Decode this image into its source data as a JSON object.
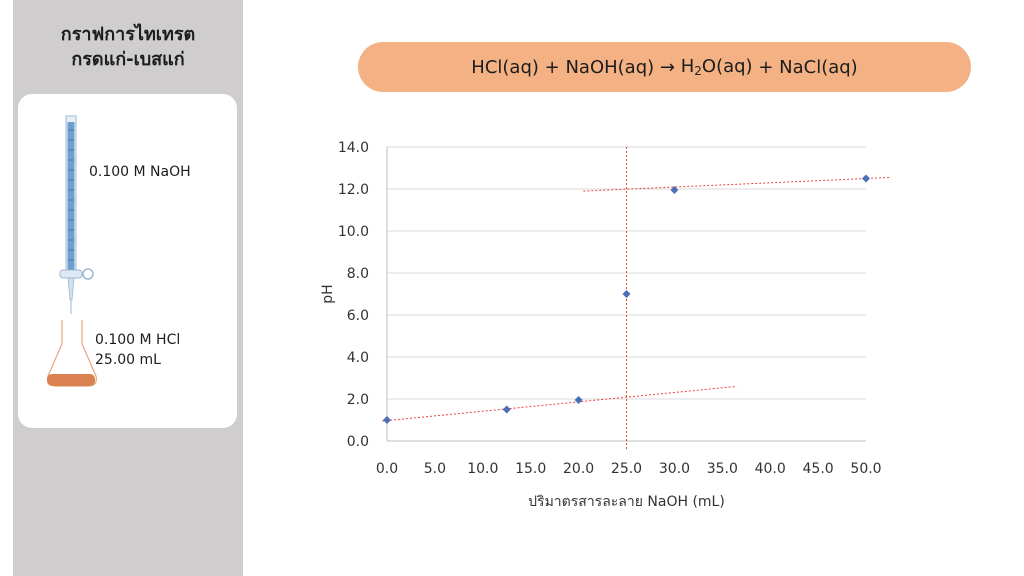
{
  "sidebar": {
    "title_line1": "กราฟการไทเทรต",
    "title_line2": "กรดแก่-เบสแก่",
    "burette_label": "0.100 M NaOH",
    "flask_label_line1": "0.100 M HCl",
    "flask_label_line2": "25.00 mL"
  },
  "equation": {
    "reactant1": "HCl(aq)",
    "plus1": "+",
    "reactant2": "NaOH(aq)",
    "arrow": "→",
    "product1_pre": "H",
    "product1_sub": "2",
    "product1_post": "O(aq)",
    "plus2": "+",
    "product2": "NaCl(aq)"
  },
  "colors": {
    "banner": "#f4b183",
    "points": "#4a6fb5",
    "trendline": "#e8413a",
    "solution": "#d9814f"
  },
  "chart_data": {
    "type": "scatter",
    "title": "",
    "xlabel": "ปริมาตรสารละลาย NaOH (mL)",
    "ylabel": "pH",
    "xlim": [
      0,
      50
    ],
    "ylim": [
      0,
      14
    ],
    "x_ticks": [
      "0.0",
      "5.0",
      "10.0",
      "15.0",
      "20.0",
      "25.0",
      "30.0",
      "35.0",
      "40.0",
      "45.0",
      "50.0"
    ],
    "y_ticks": [
      "0.0",
      "2.0",
      "4.0",
      "6.0",
      "8.0",
      "10.0",
      "12.0",
      "14.0"
    ],
    "grid": "horizontal",
    "series": [
      {
        "x": [
          0,
          12.5,
          20,
          25,
          30,
          50
        ],
        "y": [
          1.0,
          1.5,
          1.95,
          7.0,
          11.95,
          12.5
        ]
      }
    ],
    "trendlines": [
      {
        "x": [
          -0.5,
          36.5
        ],
        "y": [
          0.95,
          2.6
        ]
      },
      {
        "x": [
          20.5,
          52.5
        ],
        "y": [
          11.9,
          12.55
        ]
      }
    ],
    "vline_x": 25
  }
}
